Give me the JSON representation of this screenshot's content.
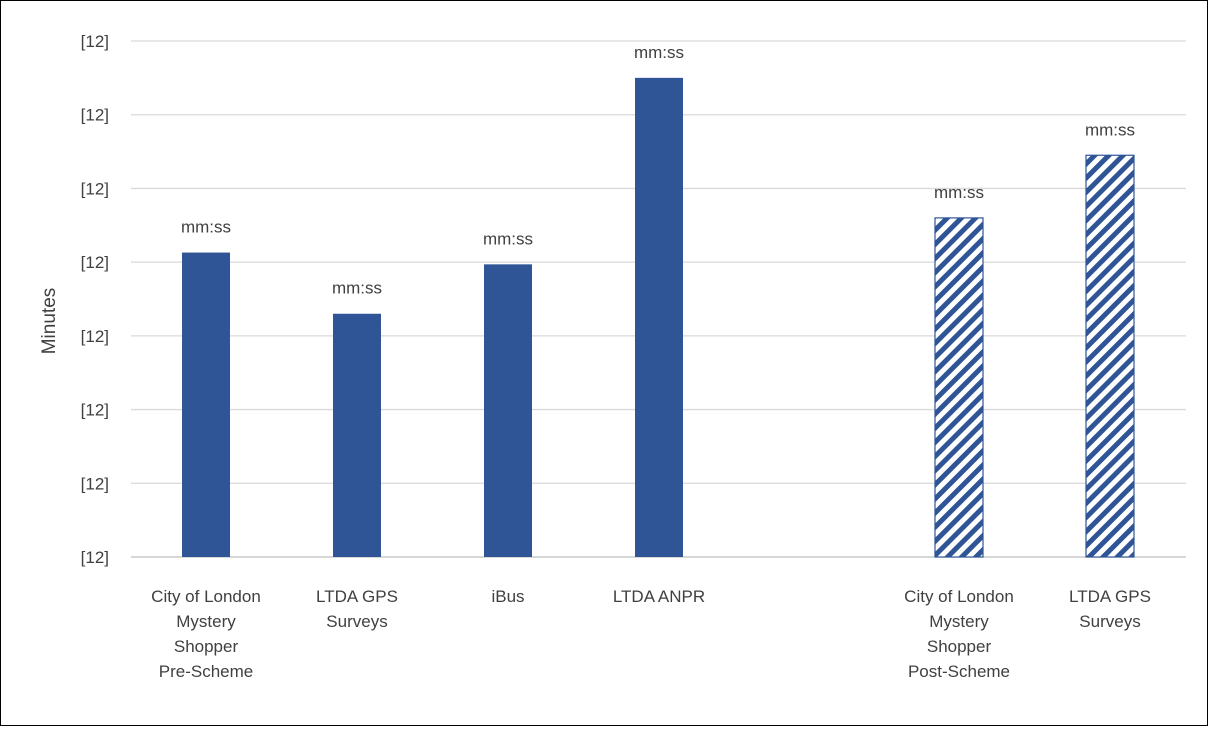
{
  "chart_data": {
    "type": "bar",
    "ylabel": "Minutes",
    "y_tick_labels": [
      "[12]",
      "[12]",
      "[12]",
      "[12]",
      "[12]",
      "[12]",
      "[12]",
      "[12]"
    ],
    "ylim": [
      0,
      7
    ],
    "grid": true,
    "legend": "none",
    "colors": {
      "bar": "#2F5597",
      "grid": "#D9D9D9",
      "text": "#404040"
    },
    "categories": [
      [
        "City of London",
        "Mystery",
        "Shopper",
        "Pre-Scheme"
      ],
      [
        "LTDA GPS",
        "Surveys"
      ],
      [
        "iBus"
      ],
      [
        "LTDA ANPR"
      ],
      [
        "City of London",
        "Mystery",
        "Shopper",
        "Post-Scheme"
      ],
      [
        "LTDA GPS",
        "Surveys"
      ]
    ],
    "values": [
      4.13,
      3.3,
      3.97,
      6.5,
      4.6,
      5.45
    ],
    "fill_styles": [
      "solid",
      "solid",
      "solid",
      "solid",
      "hatched",
      "hatched"
    ],
    "data_labels": [
      "mm:ss",
      "mm:ss",
      "mm:ss",
      "mm:ss",
      "mm:ss",
      "mm:ss"
    ]
  }
}
